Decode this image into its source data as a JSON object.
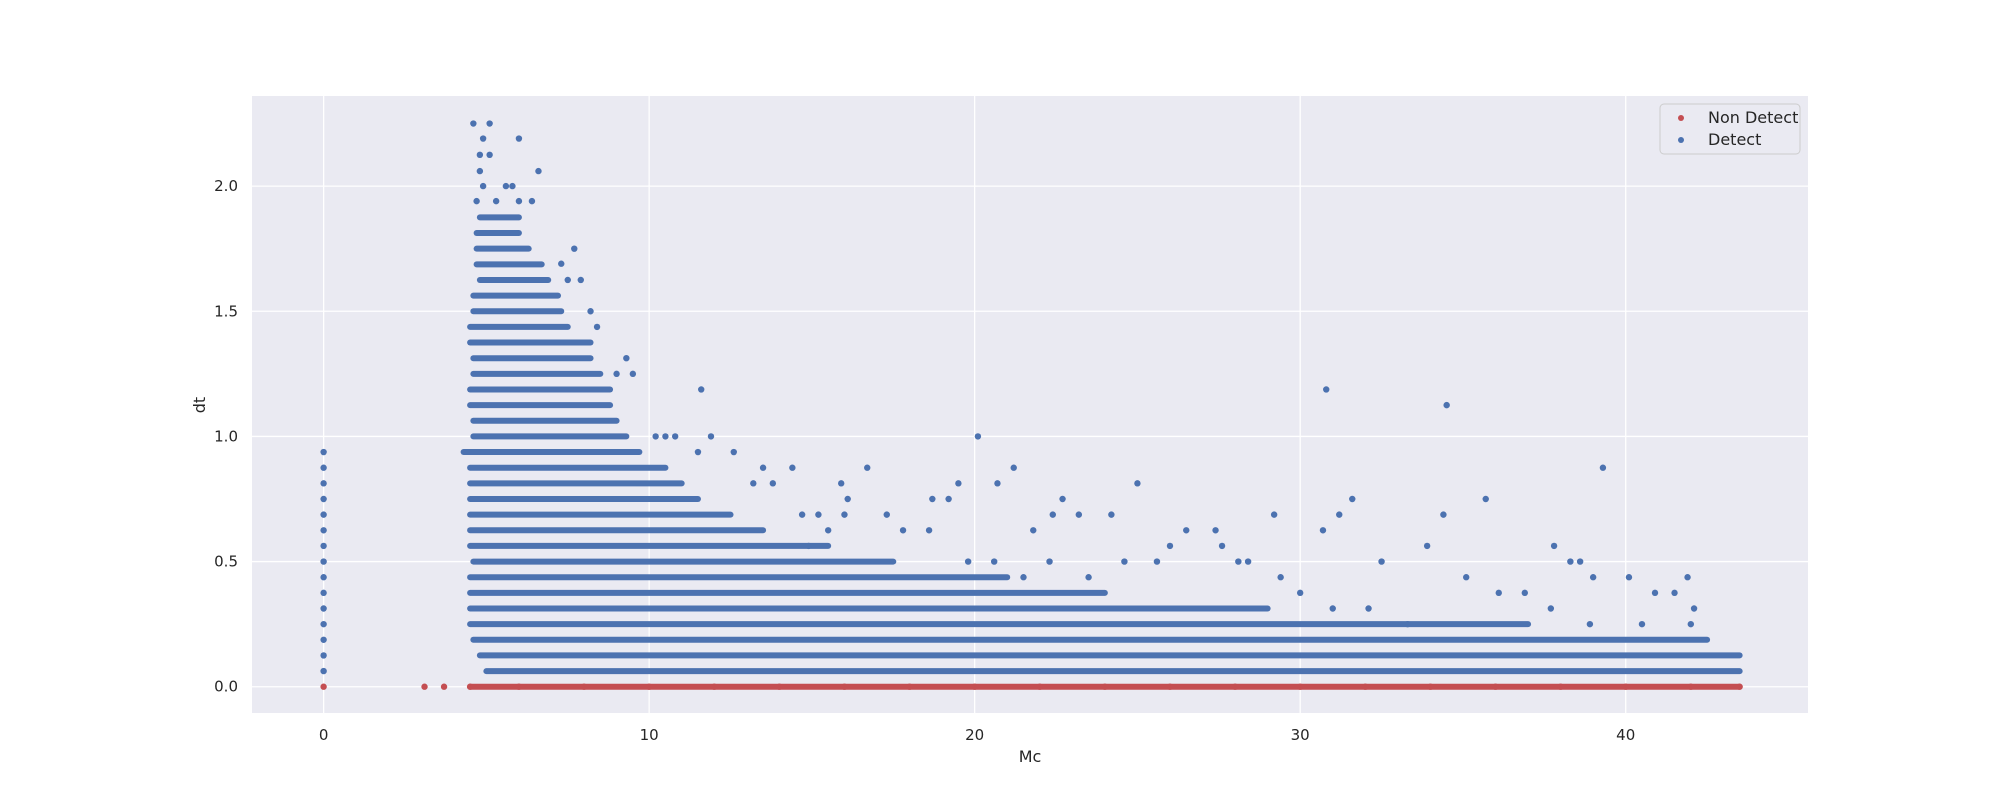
{
  "chart_data": {
    "type": "scatter",
    "xlabel": "Mc",
    "ylabel": "dt",
    "xlim": [
      -2.2,
      45.6
    ],
    "ylim": [
      -0.105,
      2.36
    ],
    "x_ticks": [
      0,
      10,
      20,
      30,
      40
    ],
    "x_tick_labels": [
      "0",
      "10",
      "20",
      "30",
      "40"
    ],
    "y_ticks": [
      0.0,
      0.5,
      1.0,
      1.5,
      2.0
    ],
    "y_tick_labels": [
      "0.0",
      "0.5",
      "1.0",
      "1.5",
      "2.0"
    ],
    "grid": true,
    "legend_position": "top-right",
    "series": [
      {
        "name": "Non Detect",
        "color": "#c44e52",
        "points": [
          [
            0,
            0
          ],
          [
            3.1,
            0
          ],
          [
            3.7,
            0
          ],
          [
            4.5,
            0
          ],
          [
            6,
            0
          ],
          [
            8,
            0
          ],
          [
            10,
            0
          ],
          [
            12,
            0
          ],
          [
            14,
            0
          ],
          [
            16,
            0
          ],
          [
            18,
            0
          ],
          [
            20,
            0
          ],
          [
            22,
            0
          ],
          [
            24,
            0
          ],
          [
            26,
            0
          ],
          [
            28,
            0
          ],
          [
            30,
            0
          ],
          [
            32,
            0
          ],
          [
            34,
            0
          ],
          [
            36,
            0
          ],
          [
            38,
            0
          ],
          [
            40,
            0
          ],
          [
            42,
            0
          ],
          [
            43.5,
            0
          ]
        ]
      },
      {
        "name": "Detect",
        "color": "#4c72b0",
        "points": [
          [
            0,
            0.0625
          ],
          [
            0,
            0.125
          ],
          [
            0,
            0.1875
          ],
          [
            0,
            0.25
          ],
          [
            0,
            0.3125
          ],
          [
            0,
            0.375
          ],
          [
            0,
            0.4375
          ],
          [
            0,
            0.5
          ],
          [
            0,
            0.5625
          ],
          [
            0,
            0.625
          ],
          [
            0,
            0.6875
          ],
          [
            0,
            0.75
          ],
          [
            0,
            0.8125
          ],
          [
            0,
            0.875
          ],
          [
            0,
            0.9375
          ],
          [
            4.6,
            2.25
          ],
          [
            5.1,
            2.25
          ],
          [
            4.9,
            2.19
          ],
          [
            6.0,
            2.19
          ],
          [
            4.8,
            2.125
          ],
          [
            5.1,
            2.125
          ],
          [
            6.6,
            2.06
          ],
          [
            4.8,
            2.06
          ],
          [
            5.6,
            2.0
          ],
          [
            5.8,
            2.0
          ],
          [
            4.9,
            2.0
          ],
          [
            4.7,
            1.94
          ],
          [
            5.3,
            1.94
          ],
          [
            6.0,
            1.94
          ],
          [
            6.4,
            1.94
          ],
          [
            7.7,
            1.75
          ],
          [
            7.3,
            1.69
          ],
          [
            7.5,
            1.625
          ],
          [
            7.9,
            1.625
          ],
          [
            8.2,
            1.5
          ],
          [
            8.4,
            1.4375
          ],
          [
            9.3,
            1.3125
          ],
          [
            9.0,
            1.25
          ],
          [
            9.5,
            1.25
          ],
          [
            11.6,
            1.1875
          ],
          [
            10.2,
            1.0
          ],
          [
            10.5,
            1.0
          ],
          [
            10.8,
            1.0
          ],
          [
            11.5,
            0.9375
          ],
          [
            11.9,
            1.0
          ],
          [
            12.6,
            0.9375
          ],
          [
            13.5,
            0.875
          ],
          [
            14.4,
            0.875
          ],
          [
            16.7,
            0.875
          ],
          [
            13.2,
            0.8125
          ],
          [
            13.8,
            0.8125
          ],
          [
            15.9,
            0.8125
          ],
          [
            16.1,
            0.75
          ],
          [
            18.7,
            0.75
          ],
          [
            19.2,
            0.75
          ],
          [
            19.5,
            0.8125
          ],
          [
            20.1,
            1.0
          ],
          [
            20.7,
            0.8125
          ],
          [
            21.2,
            0.875
          ],
          [
            22.7,
            0.75
          ],
          [
            25.0,
            0.8125
          ],
          [
            24.2,
            0.6875
          ],
          [
            23.2,
            0.6875
          ],
          [
            22.4,
            0.6875
          ],
          [
            21.8,
            0.625
          ],
          [
            26.5,
            0.625
          ],
          [
            27.4,
            0.625
          ],
          [
            29.2,
            0.6875
          ],
          [
            30.7,
            0.625
          ],
          [
            30.8,
            1.1875
          ],
          [
            31.2,
            0.6875
          ],
          [
            31.6,
            0.75
          ],
          [
            32.5,
            0.5
          ],
          [
            34.4,
            0.6875
          ],
          [
            34.5,
            1.125
          ],
          [
            35.7,
            0.75
          ],
          [
            33.9,
            0.5625
          ],
          [
            37.8,
            0.5625
          ],
          [
            38.6,
            0.5
          ],
          [
            38.3,
            0.5
          ],
          [
            39.3,
            0.875
          ],
          [
            40.1,
            0.4375
          ],
          [
            41.9,
            0.4375
          ],
          [
            39.0,
            0.4375
          ],
          [
            40.9,
            0.375
          ],
          [
            41.5,
            0.375
          ],
          [
            42.1,
            0.3125
          ],
          [
            42.0,
            0.25
          ],
          [
            28.4,
            0.5
          ],
          [
            27.6,
            0.5625
          ],
          [
            28.1,
            0.5
          ],
          [
            26.0,
            0.5625
          ],
          [
            25.6,
            0.5
          ],
          [
            24.6,
            0.5
          ],
          [
            23.5,
            0.4375
          ],
          [
            22.3,
            0.5
          ],
          [
            21.5,
            0.4375
          ],
          [
            20.6,
            0.5
          ],
          [
            19.8,
            0.5
          ],
          [
            36.1,
            0.375
          ],
          [
            36.9,
            0.375
          ],
          [
            37.7,
            0.3125
          ],
          [
            35.1,
            0.4375
          ],
          [
            16.0,
            0.6875
          ],
          [
            17.3,
            0.6875
          ],
          [
            17.8,
            0.625
          ],
          [
            18.6,
            0.625
          ],
          [
            15.2,
            0.6875
          ],
          [
            14.7,
            0.6875
          ],
          [
            15.5,
            0.625
          ],
          [
            14.9,
            0.5625
          ],
          [
            29.4,
            0.4375
          ],
          [
            30.0,
            0.375
          ],
          [
            31.0,
            0.3125
          ],
          [
            32.1,
            0.3125
          ],
          [
            33.3,
            0.25
          ],
          [
            38.9,
            0.25
          ],
          [
            40.5,
            0.25
          ]
        ],
        "bands": [
          {
            "y": 0.0625,
            "x_min": 5.0,
            "x_max": 43.5
          },
          {
            "y": 0.125,
            "x_min": 4.8,
            "x_max": 43.5
          },
          {
            "y": 0.1875,
            "x_min": 4.6,
            "x_max": 42.5
          },
          {
            "y": 0.25,
            "x_min": 4.5,
            "x_max": 37.0
          },
          {
            "y": 0.3125,
            "x_min": 4.5,
            "x_max": 29.0
          },
          {
            "y": 0.375,
            "x_min": 4.5,
            "x_max": 24.0
          },
          {
            "y": 0.4375,
            "x_min": 4.5,
            "x_max": 21.0
          },
          {
            "y": 0.5,
            "x_min": 4.6,
            "x_max": 17.5
          },
          {
            "y": 0.5625,
            "x_min": 4.5,
            "x_max": 15.5
          },
          {
            "y": 0.625,
            "x_min": 4.5,
            "x_max": 13.5
          },
          {
            "y": 0.6875,
            "x_min": 4.5,
            "x_max": 12.5
          },
          {
            "y": 0.75,
            "x_min": 4.5,
            "x_max": 11.5
          },
          {
            "y": 0.8125,
            "x_min": 4.5,
            "x_max": 11.0
          },
          {
            "y": 0.875,
            "x_min": 4.5,
            "x_max": 10.5
          },
          {
            "y": 0.9375,
            "x_min": 4.3,
            "x_max": 9.7
          },
          {
            "y": 1.0,
            "x_min": 4.6,
            "x_max": 9.3
          },
          {
            "y": 1.0625,
            "x_min": 4.6,
            "x_max": 9.0
          },
          {
            "y": 1.125,
            "x_min": 4.5,
            "x_max": 8.8
          },
          {
            "y": 1.1875,
            "x_min": 4.5,
            "x_max": 8.8
          },
          {
            "y": 1.25,
            "x_min": 4.6,
            "x_max": 8.5
          },
          {
            "y": 1.3125,
            "x_min": 4.6,
            "x_max": 8.2
          },
          {
            "y": 1.375,
            "x_min": 4.5,
            "x_max": 8.2
          },
          {
            "y": 1.4375,
            "x_min": 4.5,
            "x_max": 7.5
          },
          {
            "y": 1.5,
            "x_min": 4.6,
            "x_max": 7.3
          },
          {
            "y": 1.5625,
            "x_min": 4.6,
            "x_max": 7.2
          },
          {
            "y": 1.625,
            "x_min": 4.8,
            "x_max": 6.9
          },
          {
            "y": 1.6875,
            "x_min": 4.7,
            "x_max": 6.7
          },
          {
            "y": 1.75,
            "x_min": 4.7,
            "x_max": 6.3
          },
          {
            "y": 1.8125,
            "x_min": 4.7,
            "x_max": 6.0
          },
          {
            "y": 1.875,
            "x_min": 4.8,
            "x_max": 6.0
          }
        ]
      }
    ]
  }
}
